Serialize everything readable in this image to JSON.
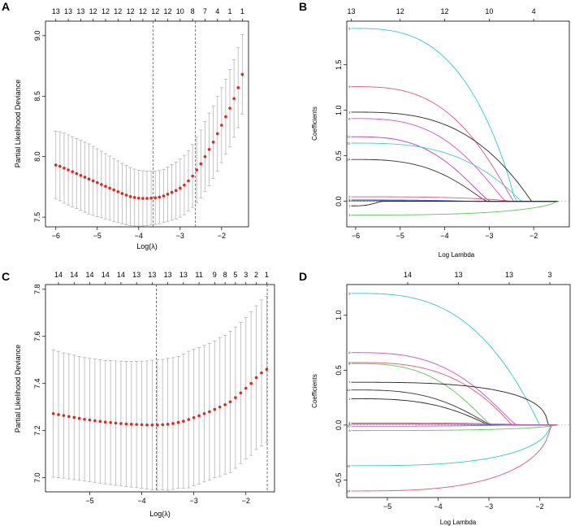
{
  "chart_data": [
    {
      "panel": "A",
      "type": "scatter",
      "subtype": "cv-deviance-with-errorbars",
      "xlabel": "Log(λ)",
      "ylabel": "Partial Likelihood Deviance",
      "xlim": [
        -6.25,
        -1.35
      ],
      "ylim": [
        7.42,
        9.12
      ],
      "xticks": [
        -6,
        -5,
        -4,
        -3,
        -2
      ],
      "xtick_labels": [
        "−6",
        "−5",
        "−4",
        "−3",
        "−2"
      ],
      "yticks": [
        7.5,
        8.0,
        8.5,
        9.0
      ],
      "ytick_labels": [
        "7.5",
        "8.0",
        "8.5",
        "9.0"
      ],
      "top_ticks": [
        -6.0,
        -5.7,
        -5.4,
        -5.1,
        -4.8,
        -4.5,
        -4.2,
        -3.9,
        -3.6,
        -3.3,
        -3.0,
        -2.7,
        -2.4,
        -2.1,
        -1.8,
        -1.5
      ],
      "top_labels": [
        "13",
        "13",
        "13",
        "12",
        "12",
        "12",
        "12",
        "12",
        "12",
        "12",
        "10",
        "8",
        "7",
        "4",
        "1",
        "1"
      ],
      "vlines": [
        -3.65,
        -2.63
      ],
      "x": [
        -6.0,
        -5.9,
        -5.8,
        -5.7,
        -5.6,
        -5.5,
        -5.4,
        -5.3,
        -5.2,
        -5.1,
        -5.0,
        -4.9,
        -4.8,
        -4.7,
        -4.6,
        -4.5,
        -4.4,
        -4.3,
        -4.2,
        -4.1,
        -4.0,
        -3.9,
        -3.8,
        -3.7,
        -3.6,
        -3.5,
        -3.4,
        -3.3,
        -3.2,
        -3.1,
        -3.0,
        -2.9,
        -2.8,
        -2.7,
        -2.6,
        -2.5,
        -2.4,
        -2.3,
        -2.2,
        -2.1,
        -2.0,
        -1.9,
        -1.8,
        -1.7,
        -1.6,
        -1.5
      ],
      "y": [
        7.93,
        7.92,
        7.905,
        7.89,
        7.875,
        7.86,
        7.845,
        7.83,
        7.815,
        7.8,
        7.785,
        7.77,
        7.755,
        7.74,
        7.725,
        7.71,
        7.695,
        7.682,
        7.67,
        7.662,
        7.657,
        7.655,
        7.655,
        7.657,
        7.66,
        7.665,
        7.675,
        7.69,
        7.705,
        7.72,
        7.74,
        7.765,
        7.8,
        7.84,
        7.89,
        7.94,
        8.0,
        8.06,
        8.12,
        8.19,
        8.26,
        8.33,
        8.4,
        8.48,
        8.57,
        8.68
      ],
      "err": [
        0.28,
        0.285,
        0.29,
        0.29,
        0.29,
        0.29,
        0.29,
        0.29,
        0.29,
        0.285,
        0.28,
        0.275,
        0.27,
        0.265,
        0.26,
        0.255,
        0.25,
        0.245,
        0.24,
        0.235,
        0.23,
        0.228,
        0.225,
        0.222,
        0.22,
        0.22,
        0.22,
        0.225,
        0.23,
        0.235,
        0.24,
        0.245,
        0.25,
        0.26,
        0.27,
        0.28,
        0.29,
        0.3,
        0.3,
        0.31,
        0.31,
        0.31,
        0.32,
        0.32,
        0.33,
        0.33
      ]
    },
    {
      "panel": "B",
      "type": "line",
      "subtype": "coefficient-paths",
      "xlabel": "Log Lambda",
      "ylabel": "Coefficients",
      "xlim": [
        -6.2,
        -1.2
      ],
      "ylim": [
        -0.28,
        1.98
      ],
      "xticks": [
        -6,
        -5,
        -4,
        -3,
        -2
      ],
      "xtick_labels": [
        "−6",
        "−5",
        "−4",
        "−3",
        "−2"
      ],
      "yticks": [
        0.0,
        0.5,
        1.0,
        1.5
      ],
      "ytick_labels": [
        "0.0",
        "0.5",
        "1.0",
        "1.5"
      ],
      "top_ticks": [
        -6.1,
        -5.0,
        -4.0,
        -3.0,
        -2.0
      ],
      "top_labels": [
        "13",
        "12",
        "12",
        "10",
        "4"
      ],
      "series": [
        {
          "name": "5",
          "color": "#33c7d6",
          "start": 1.9,
          "zero": -2.42,
          "shape": 0.9
        },
        {
          "name": "9",
          "color": "#e0557a",
          "start": 1.26,
          "zero": -2.45,
          "shape": 1.1
        },
        {
          "name": "1",
          "color": "#222222",
          "start": 0.98,
          "zero": -2.05,
          "shape": 1.0
        },
        {
          "name": "6",
          "color": "#d44fd1",
          "start": 0.91,
          "zero": -2.62,
          "shape": 1.2
        },
        {
          "name": "13",
          "color": "#b040b8",
          "start": 0.71,
          "zero": -2.97,
          "shape": 1.3
        },
        {
          "name": "11",
          "color": "#48c9cf",
          "start": 0.64,
          "zero": -2.28,
          "shape": 1.0
        },
        {
          "name": "14",
          "color": "#333333",
          "start": 0.46,
          "zero": -3.05,
          "shape": 1.2
        },
        {
          "name": "2",
          "color": "#e05a7a",
          "start": 0.05,
          "zero": -2.5,
          "shape": 0.8
        },
        {
          "name": "8",
          "color": "#3d5ce0",
          "start": 0.015,
          "zero": -3.4,
          "shape": 1.0
        },
        {
          "name": "4",
          "color": "#444444",
          "start": 0.005,
          "zero": -3.2,
          "shape": 1.0
        },
        {
          "name": "7",
          "color": "#222222",
          "start": -0.05,
          "zero": -5.4,
          "shape": 1.5
        },
        {
          "name": "3",
          "color": "#5ac85a",
          "start": -0.15,
          "zero": -1.5,
          "shape": 0.6
        }
      ]
    },
    {
      "panel": "C",
      "type": "scatter",
      "subtype": "cv-deviance-with-errorbars",
      "xlabel": "Log(λ)",
      "ylabel": "Partial Likelihood Deviance",
      "xlim": [
        -5.85,
        -1.45
      ],
      "ylim": [
        6.94,
        7.82
      ],
      "xticks": [
        -5,
        -4,
        -3,
        -2
      ],
      "xtick_labels": [
        "−5",
        "−4",
        "−3",
        "−2"
      ],
      "yticks": [
        7.0,
        7.2,
        7.4,
        7.6,
        7.8
      ],
      "ytick_labels": [
        "7.0",
        "7.2",
        "7.4",
        "7.6",
        "7.8"
      ],
      "top_ticks": [
        -5.6,
        -5.3,
        -5.0,
        -4.7,
        -4.4,
        -4.1,
        -3.8,
        -3.5,
        -3.2,
        -2.9,
        -2.6,
        -2.4,
        -2.2,
        -2.0,
        -1.8,
        -1.6
      ],
      "top_labels": [
        "14",
        "14",
        "14",
        "14",
        "14",
        "13",
        "13",
        "13",
        "13",
        "11",
        "9",
        "8",
        "5",
        "3",
        "2",
        "1"
      ],
      "vlines": [
        -3.72,
        -1.59
      ],
      "x": [
        -5.7,
        -5.6,
        -5.5,
        -5.4,
        -5.3,
        -5.2,
        -5.1,
        -5.0,
        -4.9,
        -4.8,
        -4.7,
        -4.6,
        -4.5,
        -4.4,
        -4.3,
        -4.2,
        -4.1,
        -4.0,
        -3.9,
        -3.8,
        -3.7,
        -3.6,
        -3.5,
        -3.4,
        -3.3,
        -3.2,
        -3.1,
        -3.0,
        -2.9,
        -2.8,
        -2.7,
        -2.6,
        -2.5,
        -2.4,
        -2.3,
        -2.2,
        -2.1,
        -2.0,
        -1.9,
        -1.8,
        -1.7,
        -1.6
      ],
      "y": [
        7.272,
        7.268,
        7.264,
        7.26,
        7.256,
        7.252,
        7.248,
        7.245,
        7.242,
        7.239,
        7.236,
        7.234,
        7.232,
        7.23,
        7.228,
        7.227,
        7.226,
        7.225,
        7.224,
        7.224,
        7.224,
        7.225,
        7.227,
        7.23,
        7.235,
        7.24,
        7.247,
        7.255,
        7.263,
        7.272,
        7.28,
        7.29,
        7.3,
        7.31,
        7.322,
        7.34,
        7.36,
        7.38,
        7.4,
        7.425,
        7.445,
        7.46
      ],
      "err": [
        0.27,
        0.268,
        0.266,
        0.265,
        0.264,
        0.263,
        0.262,
        0.262,
        0.262,
        0.262,
        0.262,
        0.263,
        0.264,
        0.265,
        0.266,
        0.267,
        0.268,
        0.27,
        0.272,
        0.275,
        0.277,
        0.277,
        0.28,
        0.28,
        0.28,
        0.285,
        0.29,
        0.29,
        0.29,
        0.29,
        0.29,
        0.29,
        0.295,
        0.295,
        0.3,
        0.3,
        0.3,
        0.3,
        0.305,
        0.305,
        0.31,
        0.31
      ]
    },
    {
      "panel": "D",
      "type": "line",
      "subtype": "coefficient-paths",
      "xlabel": "Log Lambda",
      "ylabel": "Coefficients",
      "xlim": [
        -5.8,
        -1.4
      ],
      "ylim": [
        -0.66,
        1.28
      ],
      "xticks": [
        -5,
        -4,
        -3,
        -2
      ],
      "xtick_labels": [
        "−5",
        "−4",
        "−3",
        "−2"
      ],
      "yticks": [
        -0.5,
        0.0,
        0.5,
        1.0
      ],
      "ytick_labels": [
        "−0.5",
        "0.0",
        "0.5",
        "1.0"
      ],
      "top_ticks": [
        -4.6,
        -3.6,
        -2.6,
        -1.8
      ],
      "top_labels": [
        "14",
        "13",
        "13",
        "3"
      ],
      "series": [
        {
          "name": "5",
          "color": "#33c7d6",
          "start": 1.2,
          "zero": -2.0,
          "shape": 1.0
        },
        {
          "name": "6",
          "color": "#c84fc8",
          "start": 0.66,
          "zero": -2.45,
          "shape": 1.2
        },
        {
          "name": "9",
          "color": "#e0557a",
          "start": 0.57,
          "zero": -2.55,
          "shape": 1.0
        },
        {
          "name": "8",
          "color": "#5ac85a",
          "start": 0.56,
          "zero": -2.95,
          "shape": 1.2
        },
        {
          "name": "7",
          "color": "#222222",
          "start": 0.39,
          "zero": -1.85,
          "shape": 0.4
        },
        {
          "name": "13",
          "color": "#333333",
          "start": 0.32,
          "zero": -2.95,
          "shape": 1.2
        },
        {
          "name": "1",
          "color": "#222222",
          "start": 0.24,
          "zero": -3.0,
          "shape": 1.1
        },
        {
          "name": "2",
          "color": "#e05a7a",
          "start": 0.02,
          "zero": -2.2,
          "shape": 0.8
        },
        {
          "name": "4",
          "color": "#3d5ce0",
          "start": 0.01,
          "zero": -2.6,
          "shape": 1.0
        },
        {
          "name": "10",
          "color": "#c84fc8",
          "start": -0.01,
          "zero": -2.6,
          "shape": 1.0
        },
        {
          "name": "3",
          "color": "#5ac85a",
          "start": -0.05,
          "zero": -1.7,
          "shape": 0.6
        },
        {
          "name": "11",
          "color": "#33c7d6",
          "start": -0.37,
          "zero": -1.8,
          "shape": 0.5
        },
        {
          "name": "14",
          "color": "#e0557a",
          "start": -0.6,
          "zero": -1.8,
          "shape": 0.5
        }
      ]
    }
  ]
}
